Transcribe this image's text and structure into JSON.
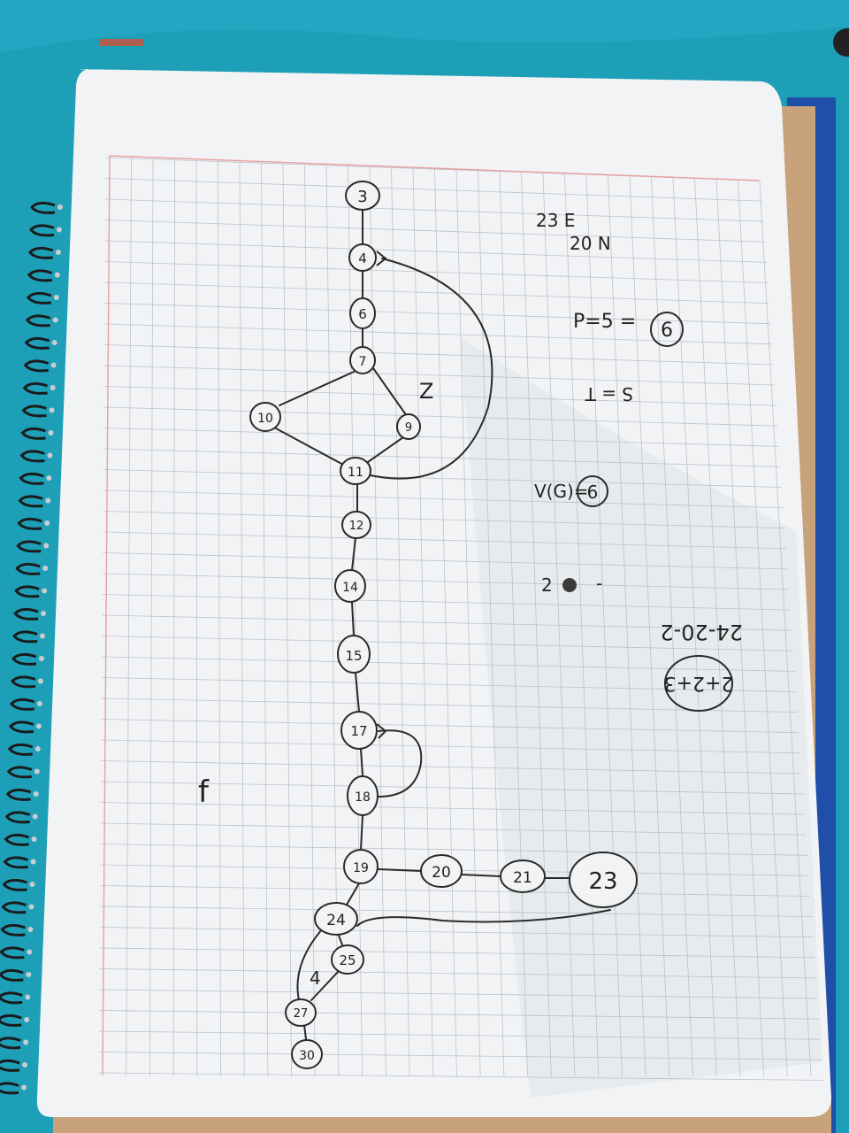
{
  "colors": {
    "fabric": "#1d9fb7",
    "paper": "#f2f3f4",
    "grid": "#aeb8c6",
    "margin_line": "#e7a0a0",
    "ink": "#2a2a2a",
    "spiral": "#1b1b1b",
    "cardboard": "#c8a27a",
    "binder": "#1f4fa8"
  },
  "graph": {
    "nodes": [
      {
        "id": "n3",
        "label": "3"
      },
      {
        "id": "n4",
        "label": "4"
      },
      {
        "id": "n6",
        "label": "6"
      },
      {
        "id": "n7",
        "label": "7"
      },
      {
        "id": "n10",
        "label": "10"
      },
      {
        "id": "n9",
        "label": "9"
      },
      {
        "id": "n11",
        "label": "11"
      },
      {
        "id": "n12",
        "label": "12"
      },
      {
        "id": "n14",
        "label": "14"
      },
      {
        "id": "n15",
        "label": "15"
      },
      {
        "id": "n17",
        "label": "17"
      },
      {
        "id": "n18",
        "label": "18"
      },
      {
        "id": "n19",
        "label": "19"
      },
      {
        "id": "n20",
        "label": "20"
      },
      {
        "id": "n21",
        "label": "21"
      },
      {
        "id": "n23",
        "label": "23"
      },
      {
        "id": "n24",
        "label": "24"
      },
      {
        "id": "n25",
        "label": "25"
      },
      {
        "id": "n27",
        "label": "27"
      },
      {
        "id": "n30",
        "label": "30"
      }
    ],
    "edge_labels": {
      "loop_7_9_11": "Z",
      "loop_24_27": "4"
    }
  },
  "notes": {
    "coords_e": "23 E",
    "coords_n": "20 N",
    "p_eq": "P=5 =",
    "p_result": "6",
    "s_eq": "S = T",
    "v_eq": "V(G)=",
    "v_result": "6",
    "two": "2",
    "dash": "-",
    "expr": "24-20-2",
    "boxed": "2+2+3",
    "margin_mark": "f"
  }
}
